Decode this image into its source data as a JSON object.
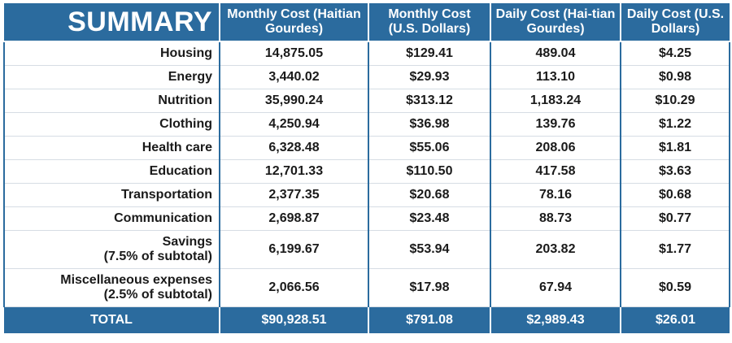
{
  "header": {
    "title": "SUMMARY",
    "columns": [
      "Monthly Cost (Haitian Gourdes)",
      "Monthly Cost (U.S. Dollars)",
      "Daily Cost (Hai-tian Gourdes)",
      "Daily Cost (U.S. Dollars)"
    ]
  },
  "rows": [
    {
      "label": "Housing",
      "sublabel": "",
      "values": [
        "14,875.05",
        "$129.41",
        "489.04",
        "$4.25"
      ]
    },
    {
      "label": "Energy",
      "sublabel": "",
      "values": [
        "3,440.02",
        "$29.93",
        "113.10",
        "$0.98"
      ]
    },
    {
      "label": "Nutrition",
      "sublabel": "",
      "values": [
        "35,990.24",
        "$313.12",
        "1,183.24",
        "$10.29"
      ]
    },
    {
      "label": "Clothing",
      "sublabel": "",
      "values": [
        "4,250.94",
        "$36.98",
        "139.76",
        "$1.22"
      ]
    },
    {
      "label": "Health care",
      "sublabel": "",
      "values": [
        "6,328.48",
        "$55.06",
        "208.06",
        "$1.81"
      ]
    },
    {
      "label": "Education",
      "sublabel": "",
      "values": [
        "12,701.33",
        "$110.50",
        "417.58",
        "$3.63"
      ]
    },
    {
      "label": "Transportation",
      "sublabel": "",
      "values": [
        "2,377.35",
        "$20.68",
        "78.16",
        "$0.68"
      ]
    },
    {
      "label": "Communication",
      "sublabel": "",
      "values": [
        "2,698.87",
        "$23.48",
        "88.73",
        "$0.77"
      ]
    },
    {
      "label": "Savings",
      "sublabel": "(7.5% of subtotal)",
      "values": [
        "6,199.67",
        "$53.94",
        "203.82",
        "$1.77"
      ]
    },
    {
      "label": "Miscellaneous expenses",
      "sublabel": "(2.5% of subtotal)",
      "values": [
        "2,066.56",
        "$17.98",
        "67.94",
        "$0.59"
      ]
    }
  ],
  "total": {
    "label": "TOTAL",
    "values": [
      "$90,928.51",
      "$791.08",
      "$2,989.43",
      "$26.01"
    ]
  },
  "colors": {
    "header_bg": "#2b6b9e",
    "header_text": "#ffffff"
  }
}
